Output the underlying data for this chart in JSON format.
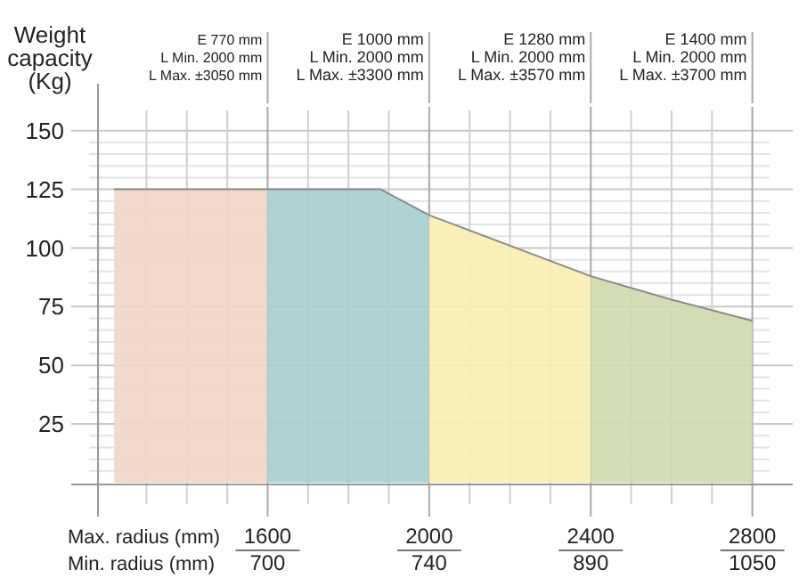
{
  "chart_data": {
    "type": "area",
    "ylabel": "Weight capacity (Kg)",
    "xlabel": "Max. radius (mm)",
    "xlim": [
      1180,
      2900
    ],
    "ylim": [
      0,
      170
    ],
    "xticks": [
      {
        "value": 1300,
        "label": null
      },
      {
        "value": 1400,
        "label": null
      },
      {
        "value": 1500,
        "label": null
      },
      1600,
      {
        "value": 1700,
        "label": null
      },
      {
        "value": 1800,
        "label": null
      },
      {
        "value": 1900,
        "label": null
      },
      2000,
      {
        "value": 2100,
        "label": null
      },
      {
        "value": 2200,
        "label": null
      },
      {
        "value": 2300,
        "label": null
      },
      2400,
      {
        "value": 2500,
        "label": null
      },
      {
        "value": 2600,
        "label": null
      },
      {
        "value": 2700,
        "label": null
      },
      2800
    ],
    "yticks": [
      {
        "value": 5,
        "label": null
      },
      {
        "value": 10,
        "label": null
      },
      {
        "value": 15,
        "label": null
      },
      {
        "value": 20,
        "label": null
      },
      25,
      {
        "value": 30,
        "label": null
      },
      {
        "value": 35,
        "label": null
      },
      {
        "value": 40,
        "label": null
      },
      {
        "value": 45,
        "label": null
      },
      50,
      {
        "value": 55,
        "label": null
      },
      {
        "value": 60,
        "label": null
      },
      {
        "value": 65,
        "label": null
      },
      {
        "value": 70,
        "label": null
      },
      75,
      {
        "value": 80,
        "label": null
      },
      {
        "value": 85,
        "label": null
      },
      {
        "value": 90,
        "label": null
      },
      {
        "value": 95,
        "label": null
      },
      100,
      {
        "value": 105,
        "label": null
      },
      {
        "value": 110,
        "label": null
      },
      {
        "value": 115,
        "label": null
      },
      {
        "value": 120,
        "label": null
      },
      125,
      {
        "value": 130,
        "label": null
      },
      {
        "value": 135,
        "label": null
      },
      {
        "value": 140,
        "label": null
      },
      {
        "value": 145,
        "label": null
      },
      150
    ],
    "grid": true,
    "series": [
      {
        "color": "#f0d5c5",
        "x": [
          1220,
          1600
        ],
        "values": [
          125,
          125
        ]
      },
      {
        "color": "#a6cfd2",
        "x": [
          1600,
          1880,
          2000
        ],
        "values": [
          125,
          125,
          114
        ]
      },
      {
        "color": "#faeeb2",
        "x": [
          2000,
          2200,
          2400
        ],
        "values": [
          114,
          101,
          88
        ]
      },
      {
        "color": "#cddaab",
        "x": [
          2400,
          2600,
          2800
        ],
        "values": [
          88,
          78,
          69
        ]
      }
    ],
    "annotations": [
      "E 770 mm",
      "L Min. 2000 mm",
      "L Max. ±3050 mm",
      "E 1000 mm",
      "L Min. 2000 mm",
      "L Max. ±3300 mm",
      "E 1280 mm",
      "L Min. 2000 mm",
      "L Max. ±3570 mm",
      "E 1400 mm",
      "L Min. 2000 mm",
      "L Max. ±3700 mm",
      "Min. radius (mm)",
      "700",
      "740",
      "890",
      "1050"
    ]
  }
}
